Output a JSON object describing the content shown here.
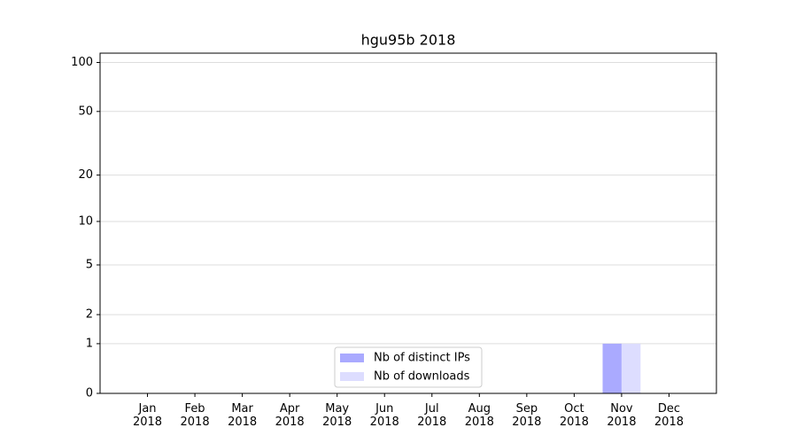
{
  "chart_data": {
    "type": "bar",
    "title": "hgu95b 2018",
    "categories": [
      "Jan 2018",
      "Feb 2018",
      "Mar 2018",
      "Apr 2018",
      "May 2018",
      "Jun 2018",
      "Jul 2018",
      "Aug 2018",
      "Sep 2018",
      "Oct 2018",
      "Nov 2018",
      "Dec 2018"
    ],
    "series": [
      {
        "name": "Nb of distinct IPs",
        "color": "#aaaaff",
        "values": [
          0,
          0,
          0,
          0,
          0,
          0,
          0,
          0,
          0,
          0,
          1,
          0
        ]
      },
      {
        "name": "Nb of downloads",
        "color": "#ddddff",
        "values": [
          0,
          0,
          0,
          0,
          0,
          0,
          0,
          0,
          0,
          0,
          1,
          0
        ]
      }
    ],
    "ylim": [
      0,
      114
    ],
    "yticks": [
      0,
      1,
      2,
      5,
      10,
      20,
      50,
      100
    ],
    "yscale": "log1p",
    "grid": true,
    "legend": "lower center"
  }
}
